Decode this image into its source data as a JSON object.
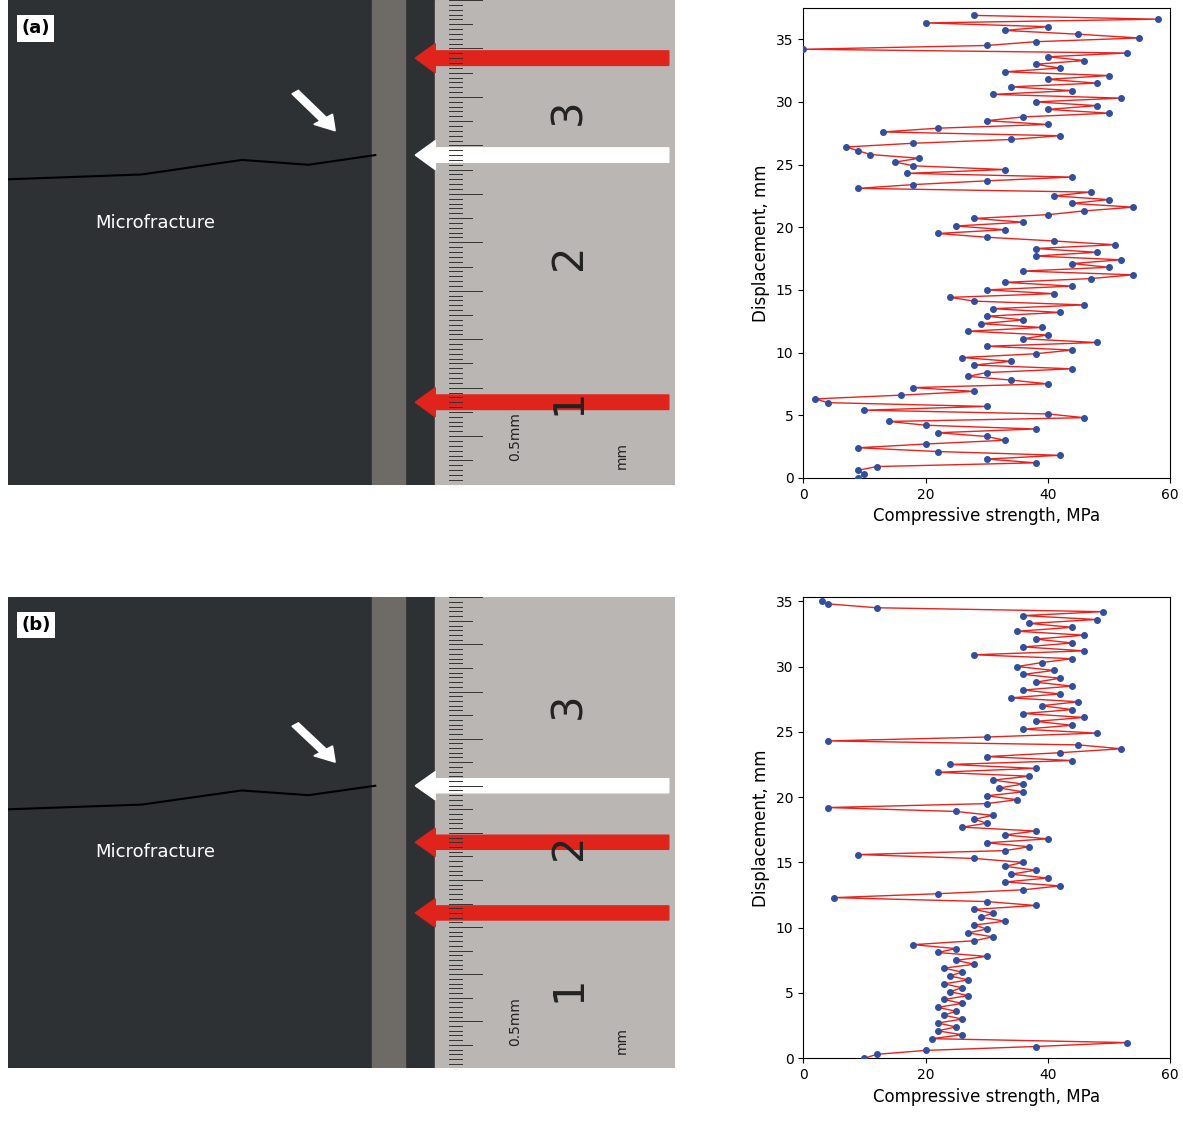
{
  "chart_data": [
    {
      "type": "line",
      "color": "#2f4fa0",
      "marker": "o",
      "xlabel": "Compressive strength, MPa",
      "ylabel": "Displacement, mm",
      "xlim": [
        0,
        60
      ],
      "xticks": [
        0,
        20,
        40,
        60
      ],
      "ylim": [
        0,
        37.5
      ],
      "yticks": [
        0,
        5,
        10,
        15,
        20,
        25,
        30,
        35
      ],
      "series": [
        {
          "color": "#e8231d",
          "line_style": "solid",
          "x": [
            9,
            10,
            9,
            12,
            38,
            30,
            42,
            22,
            9,
            20,
            33,
            30,
            22,
            38,
            20,
            14,
            46,
            40,
            10,
            30,
            4,
            2,
            16,
            28,
            18,
            40,
            34,
            27,
            30,
            44,
            28,
            34,
            26,
            38,
            44,
            30,
            48,
            36,
            40,
            27,
            39,
            29,
            36,
            30,
            42,
            31,
            46,
            28,
            24,
            41,
            30,
            44,
            33,
            47,
            54,
            36,
            50,
            44,
            52,
            38,
            48,
            38,
            51,
            41,
            30,
            22,
            33,
            25,
            36,
            28,
            40,
            46,
            54,
            44,
            50,
            41,
            47,
            9,
            18,
            30,
            44,
            17,
            33,
            18,
            15,
            19,
            11,
            9,
            7,
            18,
            34,
            42,
            13,
            22,
            40,
            30,
            36,
            50,
            40,
            48,
            38,
            52,
            31,
            44,
            34,
            48,
            40,
            50,
            33,
            42,
            38,
            46,
            40,
            53,
            0,
            30,
            38,
            55,
            45,
            33,
            40,
            20,
            58,
            28
          ],
          "values": [
            0.0,
            0.3,
            0.6,
            0.9,
            1.2,
            1.5,
            1.8,
            2.1,
            2.4,
            2.7,
            3.0,
            3.3,
            3.6,
            3.9,
            4.2,
            4.5,
            4.8,
            5.1,
            5.4,
            5.7,
            6.0,
            6.3,
            6.6,
            6.9,
            7.2,
            7.5,
            7.8,
            8.1,
            8.4,
            8.7,
            9.0,
            9.3,
            9.6,
            9.9,
            10.2,
            10.5,
            10.8,
            11.1,
            11.4,
            11.7,
            12.0,
            12.3,
            12.6,
            12.9,
            13.2,
            13.5,
            13.8,
            14.1,
            14.4,
            14.7,
            15.0,
            15.3,
            15.6,
            15.9,
            16.2,
            16.5,
            16.8,
            17.1,
            17.4,
            17.7,
            18.0,
            18.3,
            18.6,
            18.9,
            19.2,
            19.5,
            19.8,
            20.1,
            20.4,
            20.7,
            21.0,
            21.3,
            21.6,
            21.9,
            22.2,
            22.5,
            22.8,
            23.1,
            23.4,
            23.7,
            24.0,
            24.3,
            24.6,
            24.9,
            25.2,
            25.5,
            25.8,
            26.1,
            26.4,
            26.7,
            27.0,
            27.3,
            27.6,
            27.9,
            28.2,
            28.5,
            28.8,
            29.1,
            29.4,
            29.7,
            30.0,
            30.3,
            30.6,
            30.9,
            31.2,
            31.5,
            31.8,
            32.1,
            32.4,
            32.7,
            33.0,
            33.3,
            33.6,
            33.9,
            34.2,
            34.5,
            34.8,
            35.1,
            35.4,
            35.7,
            36.0,
            36.3,
            36.6,
            36.9
          ]
        }
      ]
    },
    {
      "type": "line",
      "color": "#2f4fa0",
      "marker": "o",
      "xlabel": "Compressive strength, MPa",
      "ylabel": "Displacement, mm",
      "xlim": [
        0,
        60
      ],
      "xticks": [
        0,
        20,
        40,
        60
      ],
      "ylim": [
        0,
        35.3
      ],
      "yticks": [
        0,
        5,
        10,
        15,
        20,
        25,
        30,
        35
      ],
      "series": [
        {
          "color": "#e8231d",
          "line_style": "solid",
          "x": [
            10,
            12,
            20,
            38,
            53,
            21,
            26,
            22,
            25,
            22,
            26,
            23,
            25,
            22,
            26,
            23,
            27,
            24,
            26,
            23,
            27,
            24,
            26,
            23,
            28,
            25,
            30,
            22,
            25,
            18,
            28,
            31,
            27,
            30,
            28,
            33,
            29,
            31,
            28,
            38,
            30,
            5,
            22,
            36,
            42,
            33,
            40,
            34,
            38,
            33,
            36,
            28,
            9,
            33,
            37,
            30,
            40,
            33,
            38,
            26,
            30,
            28,
            31,
            25,
            4,
            30,
            35,
            30,
            36,
            32,
            36,
            31,
            37,
            22,
            38,
            24,
            44,
            30,
            42,
            52,
            45,
            4,
            30,
            48,
            36,
            44,
            38,
            46,
            36,
            44,
            39,
            45,
            34,
            42,
            36,
            44,
            38,
            42,
            36,
            41,
            35,
            39,
            44,
            28,
            46,
            36,
            44,
            38,
            46,
            35,
            44,
            37,
            48,
            36,
            49,
            12,
            4,
            3
          ],
          "values": [
            0.0,
            0.3,
            0.6,
            0.9,
            1.2,
            1.5,
            1.8,
            2.1,
            2.4,
            2.7,
            3.0,
            3.3,
            3.6,
            3.9,
            4.2,
            4.5,
            4.8,
            5.1,
            5.4,
            5.7,
            6.0,
            6.3,
            6.6,
            6.9,
            7.2,
            7.5,
            7.8,
            8.1,
            8.4,
            8.7,
            9.0,
            9.3,
            9.6,
            9.9,
            10.2,
            10.5,
            10.8,
            11.1,
            11.4,
            11.7,
            12.0,
            12.3,
            12.6,
            12.9,
            13.2,
            13.5,
            13.8,
            14.1,
            14.4,
            14.7,
            15.0,
            15.3,
            15.6,
            15.9,
            16.2,
            16.5,
            16.8,
            17.1,
            17.4,
            17.7,
            18.0,
            18.3,
            18.6,
            18.9,
            19.2,
            19.5,
            19.8,
            20.1,
            20.4,
            20.7,
            21.0,
            21.3,
            21.6,
            21.9,
            22.2,
            22.5,
            22.8,
            23.1,
            23.4,
            23.7,
            24.0,
            24.3,
            24.6,
            24.9,
            25.2,
            25.5,
            25.8,
            26.1,
            26.4,
            26.7,
            27.0,
            27.3,
            27.6,
            27.9,
            28.2,
            28.5,
            28.8,
            29.1,
            29.4,
            29.7,
            30.0,
            30.3,
            30.6,
            30.9,
            31.2,
            31.5,
            31.8,
            32.1,
            32.4,
            32.7,
            33.0,
            33.3,
            33.6,
            33.9,
            34.2,
            34.5,
            34.8,
            35.0
          ]
        }
      ]
    }
  ],
  "photos": [
    {
      "label": "(a)",
      "annotation": "Microfracture",
      "scale_labels": [
        "1",
        "2",
        "3"
      ],
      "scale_units": [
        "0.5mm",
        "mm"
      ]
    },
    {
      "label": "(b)",
      "annotation": "Microfracture",
      "scale_labels": [
        "1",
        "2",
        "3"
      ],
      "scale_units": [
        "0.5mm",
        "mm"
      ]
    }
  ]
}
